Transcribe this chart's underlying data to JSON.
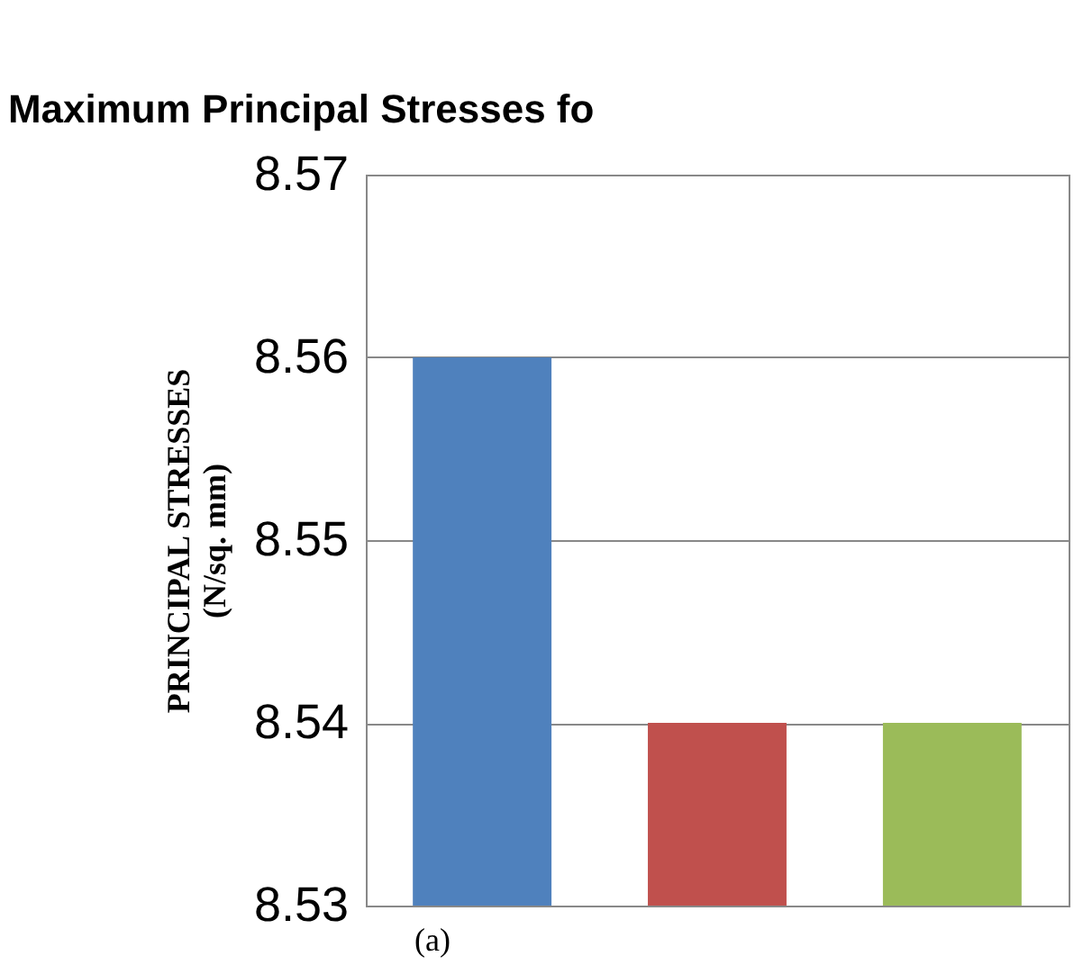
{
  "chart_data": {
    "type": "bar",
    "title": "Maximum Principal Stresses fo",
    "ylabel": "PRINCIPAL STRESSES\n(N/sq. mm)",
    "categories": [
      null,
      null,
      null
    ],
    "values": [
      8.56,
      8.54,
      8.54
    ],
    "colors": [
      "#4f81bd",
      "#c0504d",
      "#9bbb59"
    ],
    "ylim": [
      8.53,
      8.57
    ],
    "yticks": [
      8.53,
      8.54,
      8.55,
      8.56,
      8.57
    ],
    "grid": "y",
    "annotations": [
      "(a)"
    ]
  }
}
